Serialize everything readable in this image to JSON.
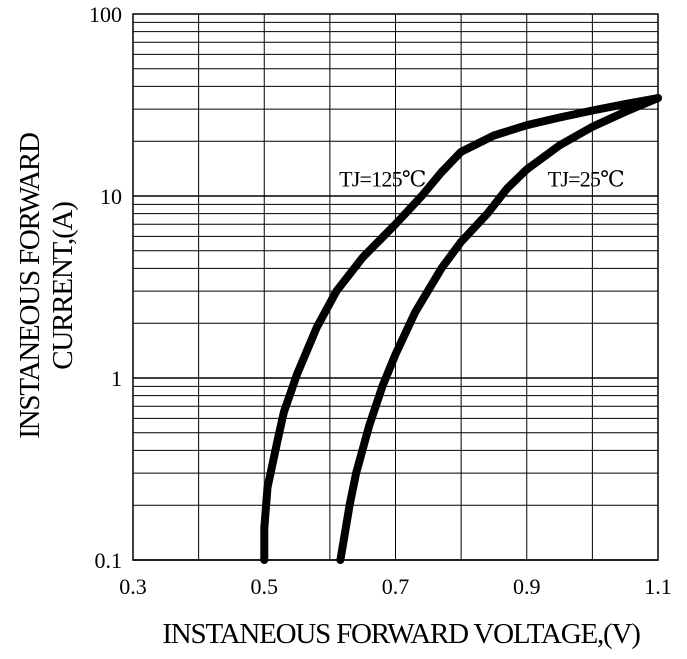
{
  "chart_data": {
    "type": "line",
    "title": "",
    "xlabel": "INSTANEOUS FORWARD VOLTAGE,(V)",
    "ylabel_lines": [
      "INSTANEOUS FORWARD",
      "CURRENT,(A)"
    ],
    "x_scale": "linear",
    "y_scale": "log",
    "xlim": [
      0.3,
      1.1
    ],
    "ylim": [
      0.1,
      100
    ],
    "x_ticks": [
      0.3,
      0.5,
      0.7,
      0.9,
      1.1
    ],
    "x_tick_labels": [
      "0.3",
      "0.5",
      "0.7",
      "0.9",
      "1.1"
    ],
    "y_ticks": [
      0.1,
      1,
      10,
      100
    ],
    "y_tick_labels": [
      "0.1",
      "1",
      "10",
      "100"
    ],
    "grid": true,
    "legend": "none",
    "line_color": "#000000",
    "series": [
      {
        "name": "TJ=125℃",
        "x": [
          0.5,
          0.5,
          0.505,
          0.52,
          0.53,
          0.55,
          0.58,
          0.61,
          0.65,
          0.7,
          0.74,
          0.77,
          0.8,
          0.85,
          0.9,
          0.95,
          1.0,
          1.05,
          1.1
        ],
        "y": [
          0.1,
          0.15,
          0.25,
          0.45,
          0.65,
          1.05,
          1.9,
          3.0,
          4.6,
          7.0,
          10.0,
          13.5,
          17.5,
          21.5,
          24.5,
          27.0,
          29.5,
          32.0,
          34.5
        ]
      },
      {
        "name": "TJ=25℃",
        "x": [
          0.616,
          0.63,
          0.64,
          0.66,
          0.68,
          0.7,
          0.73,
          0.77,
          0.8,
          0.84,
          0.87,
          0.9,
          0.95,
          1.0,
          1.05,
          1.1
        ],
        "y": [
          0.1,
          0.2,
          0.3,
          0.55,
          0.9,
          1.35,
          2.3,
          4.0,
          5.6,
          8.0,
          11.0,
          14.0,
          19.0,
          24.0,
          29.0,
          34.5
        ]
      }
    ],
    "annotations": [
      {
        "text": "TJ=125℃",
        "x": 0.68,
        "y": 12.5
      },
      {
        "text": "TJ=25℃",
        "x": 0.99,
        "y": 12.5
      }
    ]
  }
}
